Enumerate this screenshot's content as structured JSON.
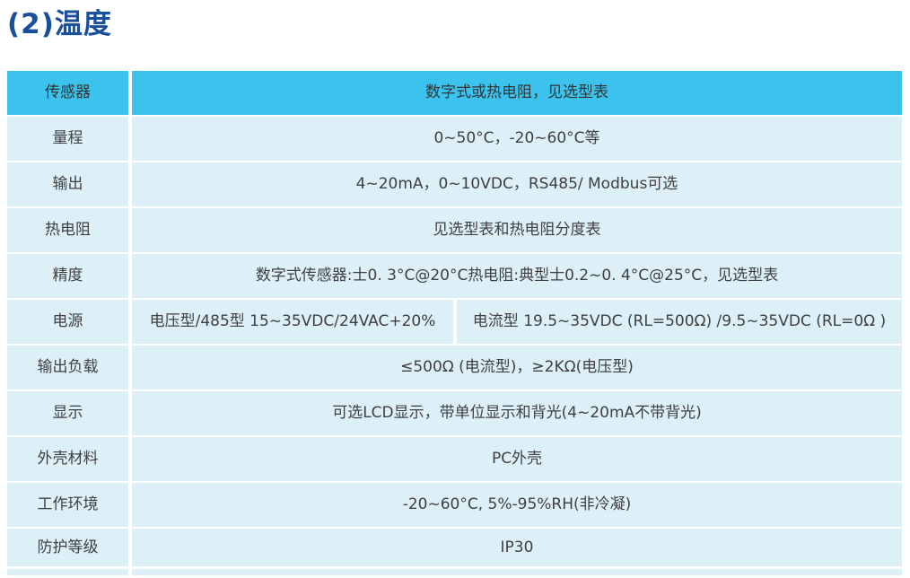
{
  "page_title": "(2)温度",
  "colors": {
    "title": "#1a4f9d",
    "header_bg": "#3bc3ee",
    "row_bg": "#ddf0f8",
    "header_text": "#333333",
    "cell_text": "#3f3f3f",
    "page_bg": "#ffffff"
  },
  "table": {
    "rows": [
      {
        "label": "传感器",
        "header": true,
        "values": [
          "数字式或热电阻，见选型表"
        ]
      },
      {
        "label": "量程",
        "values": [
          "0~50°C，-20~60°C等"
        ]
      },
      {
        "label": "输出",
        "values": [
          "4~20mA，0~10VDC，RS485/ Modbus可选"
        ]
      },
      {
        "label": "热电阻",
        "values": [
          "见选型表和热电阻分度表"
        ]
      },
      {
        "label": "精度",
        "values": [
          "数字式传感器:士0. 3°C@20°C热电阻:典型士0.2~0. 4°C@25°C，见选型表"
        ]
      },
      {
        "label": "电源",
        "values": [
          "电压型/485型 15~35VDC/24VAC+20%",
          "电流型 19.5~35VDC (RL=500Ω) /9.5~35VDC (RL=0Ω )"
        ]
      },
      {
        "label": "输出负载",
        "values": [
          "≤500Ω (电流型)，≥2KΩ(电压型)"
        ]
      },
      {
        "label": "显示",
        "values": [
          "可选LCD显示，带单位显示和背光(4~20mA不带背光)"
        ]
      },
      {
        "label": "外壳材料",
        "values": [
          "PC外壳"
        ]
      },
      {
        "label": "工作环境",
        "values": [
          "-20~60°C, 5%-95%RH(非冷凝)"
        ]
      },
      {
        "label": "防护等级",
        "values": [
          "IP30"
        ]
      }
    ]
  }
}
